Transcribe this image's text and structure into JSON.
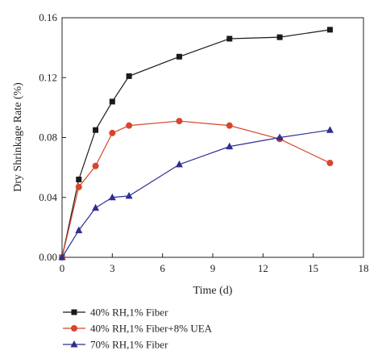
{
  "chart_data": {
    "type": "line",
    "xlabel": "Time (d)",
    "ylabel": "Dry Shrinkage Rate (%)",
    "xlim": [
      0,
      18
    ],
    "ylim": [
      0,
      0.16
    ],
    "x_ticks": [
      "0",
      "3",
      "6",
      "9",
      "12",
      "15",
      "18"
    ],
    "y_ticks": [
      "0.00",
      "0.04",
      "0.08",
      "0.12",
      "0.16"
    ],
    "grid": false,
    "legend_position": "bottom-left, below plot",
    "series": [
      {
        "name": "40% RH,1% Fiber",
        "color": "#1a1a1a",
        "marker": "square",
        "x": [
          0,
          1,
          2,
          3,
          4,
          7,
          10,
          13,
          16
        ],
        "y": [
          0,
          0.052,
          0.085,
          0.104,
          0.121,
          0.134,
          0.146,
          0.147,
          0.152
        ]
      },
      {
        "name": "40% RH,1% Fiber+8% UEA",
        "color": "#d9452b",
        "marker": "circle",
        "x": [
          0,
          1,
          2,
          3,
          4,
          7,
          10,
          13,
          16
        ],
        "y": [
          0,
          0.047,
          0.061,
          0.083,
          0.088,
          0.091,
          0.088,
          0.079,
          0.063
        ]
      },
      {
        "name": "70% RH,1% Fiber",
        "color": "#2f2f8f",
        "marker": "triangle",
        "x": [
          0,
          1,
          2,
          3,
          4,
          7,
          10,
          13,
          16
        ],
        "y": [
          0,
          0.018,
          0.033,
          0.04,
          0.041,
          0.062,
          0.074,
          0.08,
          0.085
        ]
      }
    ]
  }
}
